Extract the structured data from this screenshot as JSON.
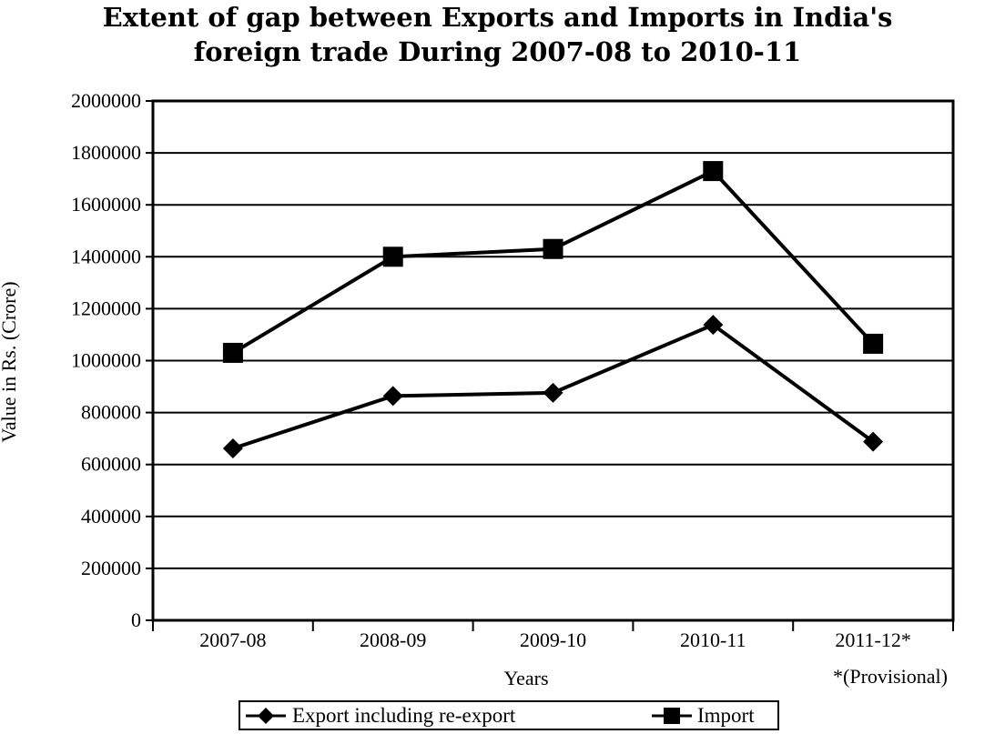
{
  "title_line1": "Extent of gap between Exports and Imports in India's",
  "title_line2": "foreign trade During 2007-08 to 2010-11",
  "chart_data": {
    "type": "line",
    "title": "Extent of gap between Exports and Imports in India's foreign trade During 2007-08 to 2010-11",
    "xlabel": "Years",
    "ylabel": "Value in Rs. (Crore)",
    "note": "*(Provisional)",
    "categories": [
      "2007-08",
      "2008-09",
      "2009-10",
      "2010-11",
      "2011-12*"
    ],
    "ylim": [
      0,
      2000000
    ],
    "yticks": [
      "0",
      "200000",
      "400000",
      "600000",
      "800000",
      "1000000",
      "1200000",
      "1400000",
      "1600000",
      "1800000",
      "2000000"
    ],
    "grid": true,
    "legend_position": "bottom",
    "series": [
      {
        "name": "Export including re-export",
        "marker": "diamond",
        "values": [
          662000,
          864000,
          876000,
          1138000,
          688000
        ]
      },
      {
        "name": "Import",
        "marker": "square",
        "values": [
          1030000,
          1400000,
          1430000,
          1730000,
          1065000
        ]
      }
    ],
    "colors": {
      "line": "#000000",
      "grid": "#000000"
    }
  }
}
